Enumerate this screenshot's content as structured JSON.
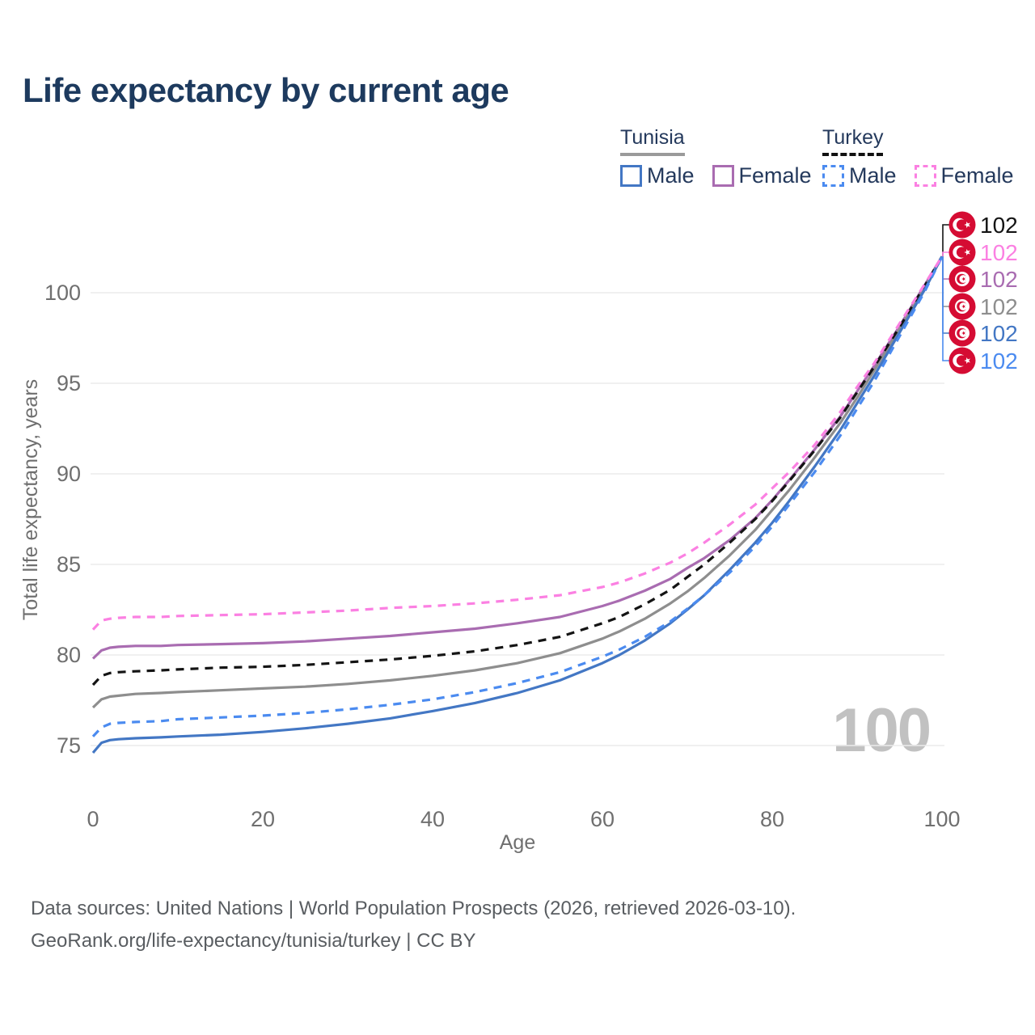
{
  "title": "Life expectancy by current age",
  "legend": {
    "groups": [
      {
        "name": "Tunisia",
        "line_style": "solid",
        "underline_color": "#9a9a9a",
        "items": [
          {
            "label": "Male",
            "color": "#4377c4"
          },
          {
            "label": "Female",
            "color": "#a96cb1"
          }
        ]
      },
      {
        "name": "Turkey",
        "line_style": "dashed",
        "underline_color": "#111111",
        "items": [
          {
            "label": "Male",
            "color": "#4b8bf0"
          },
          {
            "label": "Female",
            "color": "#fb80e2"
          }
        ]
      }
    ]
  },
  "watermark": "100",
  "footer": {
    "line1": "Data sources: United Nations | World Population Prospects (2026, retrieved 2026-03-10).",
    "line2": "GeoRank.org/life-expectancy/tunisia/turkey | CC BY"
  },
  "colors": {
    "title": "#1d3a5e",
    "axis_text": "#6f6f6f",
    "gridline": "#ececec",
    "flag_red": "#d50c33",
    "watermark": "#c1c1c1"
  },
  "chart_data": {
    "type": "line",
    "title": "Life expectancy by current age",
    "xlabel": "Age",
    "ylabel": "Total life expectancy, years",
    "x_ticks": [
      0,
      20,
      40,
      60,
      80,
      100
    ],
    "y_ticks": [
      75,
      80,
      85,
      90,
      95,
      100
    ],
    "xlim": [
      0,
      100
    ],
    "ylim": [
      73.5,
      103
    ],
    "grid": true,
    "legend_position": "top-right",
    "ages": [
      0,
      1,
      2,
      3,
      5,
      8,
      10,
      15,
      20,
      25,
      30,
      35,
      40,
      45,
      50,
      55,
      60,
      62,
      65,
      68,
      70,
      72,
      75,
      78,
      80,
      82,
      85,
      88,
      90,
      92,
      95,
      98,
      100
    ],
    "series": [
      {
        "name": "Tunisia Female",
        "country": "Tunisia",
        "sex": "female",
        "line_style": "solid",
        "color": "#a96cb1",
        "values": [
          79.8,
          80.25,
          80.4,
          80.45,
          80.5,
          80.5,
          80.55,
          80.6,
          80.65,
          80.75,
          80.9,
          81.05,
          81.25,
          81.45,
          81.75,
          82.1,
          82.7,
          83.0,
          83.55,
          84.2,
          84.8,
          85.35,
          86.35,
          87.55,
          88.55,
          89.65,
          91.35,
          93.15,
          94.55,
          95.95,
          98.15,
          100.45,
          102
        ]
      },
      {
        "name": "Tunisia Both sexes",
        "country": "Tunisia",
        "sex": "both",
        "line_style": "solid",
        "color": "#8e8e8e",
        "values": [
          77.1,
          77.55,
          77.7,
          77.75,
          77.85,
          77.9,
          77.95,
          78.05,
          78.15,
          78.25,
          78.4,
          78.6,
          78.85,
          79.15,
          79.55,
          80.1,
          80.9,
          81.3,
          82.0,
          82.85,
          83.5,
          84.25,
          85.5,
          86.9,
          88.0,
          89.1,
          90.9,
          92.8,
          94.2,
          95.7,
          98.0,
          100.3,
          102
        ]
      },
      {
        "name": "Turkey Both sexes",
        "country": "Turkey",
        "sex": "both",
        "line_style": "dashed",
        "color": "#141414",
        "values": [
          78.35,
          78.85,
          79.0,
          79.05,
          79.1,
          79.15,
          79.2,
          79.3,
          79.35,
          79.45,
          79.6,
          79.75,
          79.95,
          80.2,
          80.55,
          81.0,
          81.75,
          82.1,
          82.8,
          83.6,
          84.3,
          85.0,
          86.2,
          87.5,
          88.5,
          89.6,
          91.3,
          93.1,
          94.5,
          95.9,
          98.1,
          100.4,
          102
        ]
      },
      {
        "name": "Tunisia Male",
        "country": "Tunisia",
        "sex": "male",
        "line_style": "solid",
        "color": "#4377c4",
        "values": [
          74.6,
          75.15,
          75.3,
          75.35,
          75.4,
          75.45,
          75.5,
          75.6,
          75.75,
          75.95,
          76.2,
          76.5,
          76.9,
          77.35,
          77.9,
          78.6,
          79.55,
          80.0,
          80.8,
          81.75,
          82.5,
          83.3,
          84.7,
          86.2,
          87.3,
          88.5,
          90.4,
          92.4,
          93.9,
          95.4,
          97.8,
          100.2,
          102
        ]
      },
      {
        "name": "Turkey Male",
        "country": "Turkey",
        "sex": "male",
        "line_style": "dashed",
        "color": "#4b8bf0",
        "values": [
          75.5,
          76.0,
          76.2,
          76.25,
          76.3,
          76.35,
          76.45,
          76.55,
          76.65,
          76.8,
          77.0,
          77.25,
          77.55,
          77.95,
          78.45,
          79.05,
          79.9,
          80.3,
          81.0,
          81.85,
          82.55,
          83.3,
          84.55,
          86.0,
          87.1,
          88.3,
          90.1,
          92.1,
          93.6,
          95.1,
          97.6,
          100.1,
          102
        ]
      },
      {
        "name": "Turkey Female",
        "country": "Turkey",
        "sex": "female",
        "line_style": "dashed",
        "color": "#fb80e2",
        "values": [
          81.4,
          81.9,
          82.0,
          82.05,
          82.1,
          82.1,
          82.15,
          82.2,
          82.25,
          82.35,
          82.45,
          82.6,
          82.7,
          82.85,
          83.05,
          83.3,
          83.75,
          84.0,
          84.5,
          85.1,
          85.6,
          86.2,
          87.2,
          88.3,
          89.2,
          90.1,
          91.6,
          93.4,
          94.8,
          96.1,
          98.3,
          100.5,
          102
        ]
      }
    ],
    "end_labels": [
      {
        "series": "Turkey Both sexes",
        "flag": "turkey",
        "value": "102",
        "color": "#141414"
      },
      {
        "series": "Turkey Female",
        "flag": "turkey",
        "value": "102",
        "color": "#fb80e2"
      },
      {
        "series": "Tunisia Female",
        "flag": "tunisia",
        "value": "102",
        "color": "#a96cb1"
      },
      {
        "series": "Tunisia Both sexes",
        "flag": "tunisia",
        "value": "102",
        "color": "#8e8e8e"
      },
      {
        "series": "Tunisia Male",
        "flag": "tunisia",
        "value": "102",
        "color": "#4377c4"
      },
      {
        "series": "Turkey Male",
        "flag": "turkey",
        "value": "102",
        "color": "#4b8bf0"
      }
    ]
  }
}
